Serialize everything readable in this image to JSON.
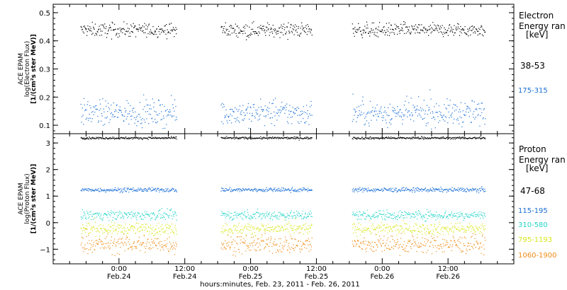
{
  "chart_data": [
    {
      "type": "scatter",
      "panel": "electron",
      "ylabel_lines": [
        "ACE EPAM",
        "log(Electron Flux)",
        "[1/(cm²s ster MeV)]"
      ],
      "ylim": [
        0.07,
        0.53
      ],
      "yticks": [
        0.1,
        0.2,
        0.3,
        0.4,
        0.5
      ],
      "ytick_labels": [
        "0.1",
        "0.2",
        "0.3",
        "0.4",
        "0.5"
      ],
      "legend_lines": [
        "Electron",
        "Energy ran",
        "[keV]"
      ],
      "gap_hours": [
        [
          58.5,
          66.5
        ],
        [
          83.2,
          90.5
        ]
      ],
      "series": [
        {
          "name": "38-53",
          "color": "#000000",
          "level": 0.44,
          "jitter": 0.012
        },
        {
          "name": "175-315",
          "color": "#1a6fd6",
          "level": 0.145,
          "jitter": 0.022
        }
      ]
    },
    {
      "type": "scatter",
      "panel": "proton",
      "ylabel_lines": [
        "ACE EPAM",
        "log(Proton Flux)",
        "[1/(cm²s ster MeV)]"
      ],
      "ylim": [
        -1.55,
        3.35
      ],
      "yticks": [
        -1,
        0,
        1,
        2,
        3
      ],
      "ytick_labels": [
        "−1",
        "0",
        "1",
        "2",
        "3"
      ],
      "legend_lines": [
        "Proton",
        "Energy ran",
        "[keV]"
      ],
      "gap_hours": [
        [
          58.5,
          66.5
        ],
        [
          83.2,
          90.5
        ]
      ],
      "series": [
        {
          "name": "47-68",
          "color": "#000000",
          "level": 3.2,
          "jitter": 0.02
        },
        {
          "name": "115-195",
          "color": "#1a6fd6",
          "level": 1.25,
          "jitter": 0.04
        },
        {
          "name": "310-580",
          "color": "#22d4c8",
          "level": 0.3,
          "jitter": 0.09
        },
        {
          "name": "795-1193",
          "color": "#d8e61a",
          "level": -0.22,
          "jitter": 0.11
        },
        {
          "name": "1060-1900",
          "color": "#f08a14",
          "level": -0.8,
          "jitter": 0.17
        }
      ]
    }
  ],
  "x_axis": {
    "range_hours": [
      36,
      120
    ],
    "data_start_hours": 41,
    "data_end_hours": 114.8,
    "major_ticks": [
      {
        "hour": 48,
        "time": "0:00",
        "date": "Feb.24"
      },
      {
        "hour": 60,
        "time": "12:00",
        "date": "Feb.24"
      },
      {
        "hour": 72,
        "time": "0:00",
        "date": "Feb.25"
      },
      {
        "hour": 84,
        "time": "12:00",
        "date": "Feb.25"
      },
      {
        "hour": 96,
        "time": "0:00",
        "date": "Feb.26"
      },
      {
        "hour": 108,
        "time": "12:00",
        "date": "Feb.26"
      }
    ],
    "minor_step_hours": 3,
    "xlabel": "hours:minutes, Feb. 23, 2011 - Feb. 26, 2011"
  },
  "colors": {
    "axis": "#000000",
    "background": "#ffffff"
  }
}
